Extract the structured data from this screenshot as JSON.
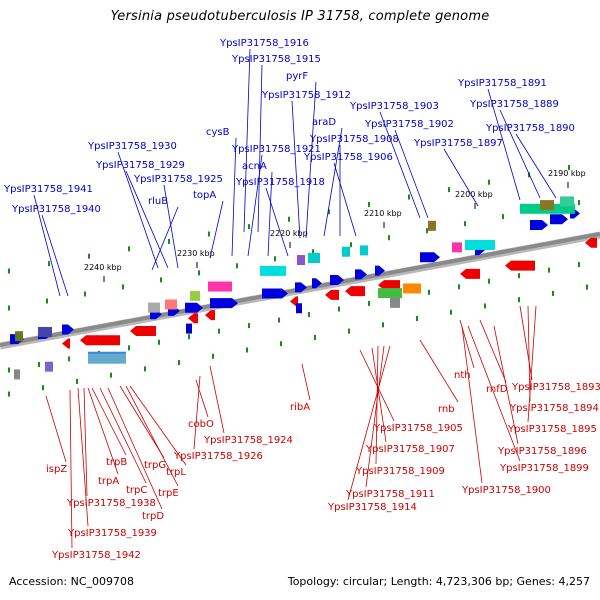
{
  "title": "Yersinia pseudotuberculosis IP 31758, complete genome",
  "footer": {
    "accession": "Accession: NC_009708",
    "summary": "Topology: circular; Length: 4,723,306 bp; Genes: 4,257"
  },
  "colors": {
    "top_label": "#0000cc",
    "bottom_label": "#cc0000",
    "backbone": "#8a8a8a",
    "tick": "#1a8a1a"
  },
  "ticks": [
    {
      "label": "2190 kbp"
    },
    {
      "label": "2200 kbp"
    },
    {
      "label": "2210 kbp"
    },
    {
      "label": "2220 kbp"
    },
    {
      "label": "2230 kbp"
    },
    {
      "label": "2240 kbp"
    }
  ],
  "top_labels": [
    {
      "text": "YpsIP31758_1916"
    },
    {
      "text": "YpsIP31758_1915"
    },
    {
      "text": "pyrF"
    },
    {
      "text": "YpsIP31758_1912"
    },
    {
      "text": "araD"
    },
    {
      "text": "YpsIP31758_1908"
    },
    {
      "text": "YpsIP31758_1906"
    },
    {
      "text": "YpsIP31758_1903"
    },
    {
      "text": "YpsIP31758_1902"
    },
    {
      "text": "YpsIP31758_1897"
    },
    {
      "text": "YpsIP31758_1891"
    },
    {
      "text": "YpsIP31758_1889"
    },
    {
      "text": "YpsIP31758_1890"
    },
    {
      "text": "cysB"
    },
    {
      "text": "YpsIP31758_1921"
    },
    {
      "text": "acnA"
    },
    {
      "text": "YpsIP31758_1918"
    },
    {
      "text": "YpsIP31758_1930"
    },
    {
      "text": "YpsIP31758_1929"
    },
    {
      "text": "YpsIP31758_1925"
    },
    {
      "text": "topA"
    },
    {
      "text": "rluB"
    },
    {
      "text": "YpsIP31758_1941"
    },
    {
      "text": "YpsIP31758_1940"
    }
  ],
  "bottom_labels": [
    {
      "text": "ispZ"
    },
    {
      "text": "trpB"
    },
    {
      "text": "trpA"
    },
    {
      "text": "YpsIP31758_1938"
    },
    {
      "text": "trpC"
    },
    {
      "text": "trpD"
    },
    {
      "text": "YpsIP31758_1939"
    },
    {
      "text": "YpsIP31758_1942"
    },
    {
      "text": "trpG"
    },
    {
      "text": "trpL"
    },
    {
      "text": "trpE"
    },
    {
      "text": "cobO"
    },
    {
      "text": "YpsIP31758_1924"
    },
    {
      "text": "YpsIP31758_1926"
    },
    {
      "text": "ribA"
    },
    {
      "text": "YpsIP31758_1905"
    },
    {
      "text": "YpsIP31758_1907"
    },
    {
      "text": "YpsIP31758_1909"
    },
    {
      "text": "YpsIP31758_1911"
    },
    {
      "text": "YpsIP31758_1914"
    },
    {
      "text": "rnb"
    },
    {
      "text": "nth"
    },
    {
      "text": "rnfD"
    },
    {
      "text": "YpsIP31758_1893"
    },
    {
      "text": "YpsIP31758_1894"
    },
    {
      "text": "YpsIP31758_1895"
    },
    {
      "text": "YpsIP31758_1896"
    },
    {
      "text": "YpsIP31758_1899"
    },
    {
      "text": "YpsIP31758_1900"
    }
  ]
}
